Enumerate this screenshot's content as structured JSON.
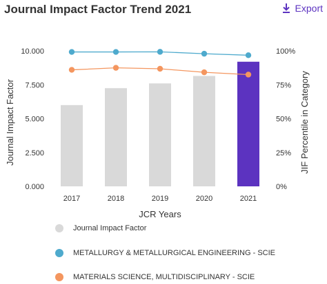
{
  "header": {
    "title": "Journal Impact Factor Trend 2021",
    "export_label": "Export",
    "export_icon": "download-icon"
  },
  "colors": {
    "bar": "#d9d9d9",
    "bar_highlight": "#5c33c0",
    "line_scie_metallurgy": "#4eaacd",
    "line_scie_materials": "#f4965f",
    "axis_text": "#333333",
    "accent": "#5c33c0"
  },
  "chart_data": {
    "type": "bar",
    "title": "Journal Impact Factor Trend 2021",
    "xlabel": "JCR Years",
    "ylabel": "Journal Impact Factor",
    "y2label": "JIF Percentile in Category",
    "categories": [
      "2017",
      "2018",
      "2019",
      "2020",
      "2021"
    ],
    "ylim": [
      0,
      10
    ],
    "y2lim": [
      0,
      100
    ],
    "yticks": [
      "0.000",
      "2.500",
      "5.000",
      "7.500",
      "10.000"
    ],
    "y2ticks": [
      "0%",
      "25%",
      "50%",
      "75%",
      "100%"
    ],
    "grid": false,
    "legend_position": "bottom",
    "highlight_category": "2021",
    "series": [
      {
        "name": "Journal Impact Factor",
        "kind": "bar",
        "axis": "left",
        "values": [
          6.0,
          7.25,
          7.6,
          8.15,
          9.2
        ]
      },
      {
        "name": "METALLURGY & METALLURGICAL ENGINEERING - SCIE",
        "kind": "line",
        "axis": "right",
        "values": [
          99.2,
          99.2,
          99.3,
          97.9,
          96.8
        ]
      },
      {
        "name": "MATERIALS SCIENCE, MULTIDISCIPLINARY - SCIE",
        "kind": "line",
        "axis": "right",
        "values": [
          86.0,
          87.5,
          86.8,
          84.2,
          82.5
        ]
      }
    ]
  }
}
